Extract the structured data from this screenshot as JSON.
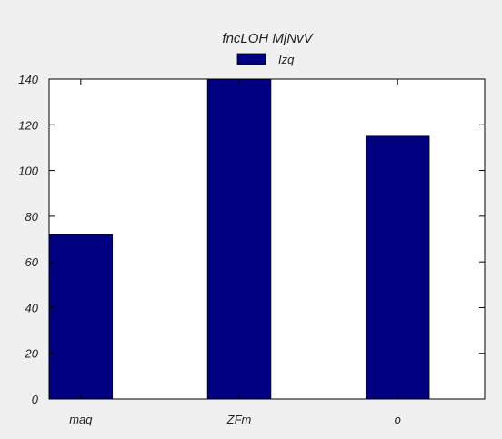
{
  "chart_data": {
    "type": "bar",
    "title": "fncLOH MjNvV",
    "categories": [
      "maq",
      "ZFm",
      "o"
    ],
    "series": [
      {
        "name": "Izq",
        "values": [
          72,
          140,
          115
        ],
        "color": "#000080"
      }
    ],
    "xlabel": "",
    "ylabel": "",
    "ylim": [
      0,
      140
    ],
    "yticks": [
      0,
      20,
      40,
      60,
      80,
      100,
      120,
      140
    ],
    "grid": false,
    "legend": "top-center"
  }
}
